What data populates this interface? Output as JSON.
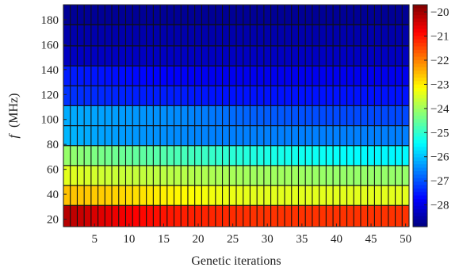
{
  "chart_data": {
    "type": "heatmap",
    "title": "",
    "xlabel": "Genetic iterations",
    "ylabel_italic": "f",
    "ylabel_rest": "(MHz)",
    "x_tick_labels": [
      "5",
      "10",
      "15",
      "20",
      "25",
      "30",
      "35",
      "40",
      "45",
      "50"
    ],
    "y_tick_labels": [
      "20",
      "40",
      "60",
      "80",
      "100",
      "120",
      "140",
      "160",
      "180"
    ],
    "colorbar_tick_labels": [
      "−20",
      "−21",
      "−22",
      "−23",
      "−24",
      "−25",
      "−26",
      "−27",
      "−28"
    ],
    "x_range": [
      0.5,
      50.5
    ],
    "y_range": [
      14,
      192
    ],
    "colorbar_range": [
      -28.9,
      -19.7
    ],
    "colormap": "jet",
    "grid": "black cell borders",
    "x_iterations": [
      1,
      50
    ],
    "rows": [
      {
        "f_low": 14,
        "f_high": 31,
        "values": [
          -20.2,
          -20.6,
          -20.9,
          -21.1,
          -21.2,
          -21.3,
          -21.3,
          -21.3,
          -21.3,
          -21.3
        ]
      },
      {
        "f_low": 31,
        "f_high": 47,
        "values": [
          -22.6,
          -22.7,
          -22.9,
          -23.1,
          -23.3,
          -23.4,
          -23.4,
          -23.4,
          -23.4,
          -23.4
        ]
      },
      {
        "f_low": 47,
        "f_high": 63,
        "values": [
          -23.4,
          -23.6,
          -23.7,
          -23.8,
          -23.9,
          -24.0,
          -24.0,
          -24.1,
          -24.1,
          -24.1
        ]
      },
      {
        "f_low": 63,
        "f_high": 79,
        "values": [
          -24.1,
          -24.4,
          -24.6,
          -24.8,
          -25.0,
          -25.2,
          -25.3,
          -25.4,
          -25.5,
          -25.5
        ]
      },
      {
        "f_low": 79,
        "f_high": 95,
        "values": [
          -26.1,
          -26.3,
          -26.4,
          -26.5,
          -26.6,
          -26.6,
          -26.6,
          -26.6,
          -26.6,
          -26.6
        ]
      },
      {
        "f_low": 95,
        "f_high": 111,
        "values": [
          -26.2,
          -26.3,
          -26.4,
          -26.5,
          -26.7,
          -26.9,
          -27.0,
          -27.1,
          -27.1,
          -27.1
        ]
      },
      {
        "f_low": 111,
        "f_high": 127,
        "values": [
          -27.3,
          -27.4,
          -27.5,
          -27.5,
          -27.6,
          -27.6,
          -27.6,
          -27.6,
          -27.6,
          -27.6
        ]
      },
      {
        "f_low": 127,
        "f_high": 143,
        "values": [
          -27.5,
          -27.6,
          -27.7,
          -27.8,
          -27.9,
          -27.9,
          -27.9,
          -27.9,
          -27.9,
          -27.9
        ]
      },
      {
        "f_low": 143,
        "f_high": 159,
        "values": [
          -28.3,
          -28.3,
          -28.3,
          -28.3,
          -28.3,
          -28.3,
          -28.3,
          -28.3,
          -28.3,
          -28.3
        ]
      },
      {
        "f_low": 159,
        "f_high": 176,
        "values": [
          -28.5,
          -28.5,
          -28.5,
          -28.5,
          -28.5,
          -28.5,
          -28.5,
          -28.5,
          -28.5,
          -28.5
        ]
      },
      {
        "f_low": 176,
        "f_high": 192,
        "values": [
          -28.7,
          -28.7,
          -28.7,
          -28.7,
          -28.7,
          -28.7,
          -28.7,
          -28.7,
          -28.7,
          -28.7
        ]
      }
    ]
  }
}
